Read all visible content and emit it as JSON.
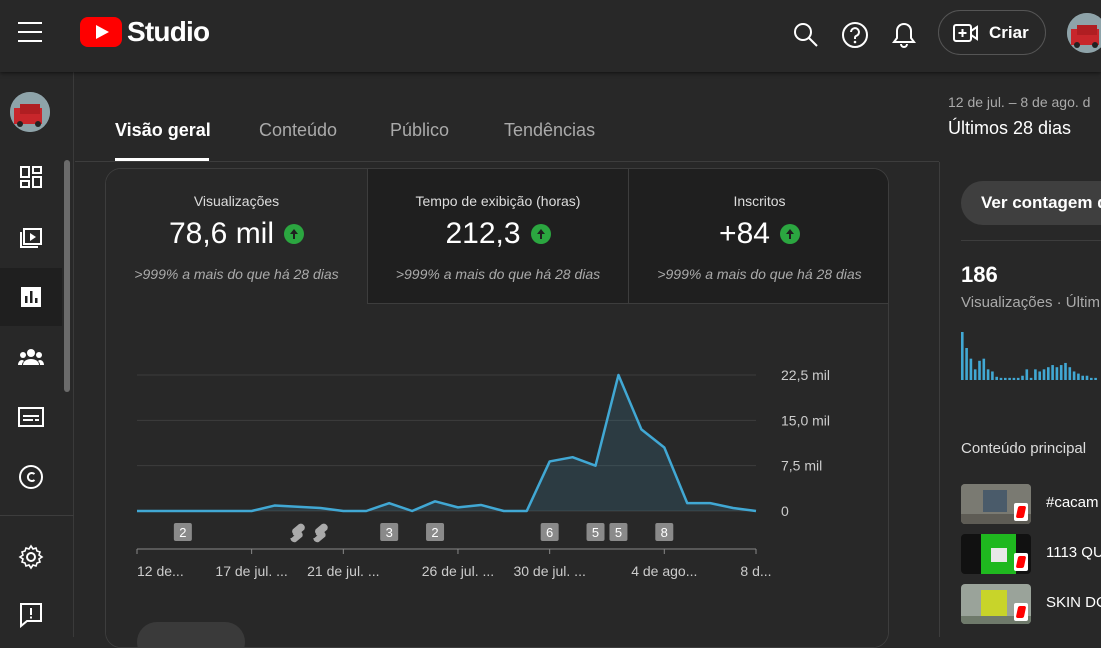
{
  "app": {
    "logo_text": "Studio"
  },
  "topbar": {
    "create_label": "Criar"
  },
  "tabs": [
    {
      "label": "Visão geral"
    },
    {
      "label": "Conteúdo"
    },
    {
      "label": "Público"
    },
    {
      "label": "Tendências"
    }
  ],
  "date_range": {
    "range": "12 de jul. – 8 de ago. d",
    "label": "Últimos 28 dias"
  },
  "metrics": [
    {
      "label": "Visualizações",
      "value": "78,6 mil",
      "comparison": ">999% a mais do que há 28 dias"
    },
    {
      "label": "Tempo de exibição (horas)",
      "value": "212,3",
      "comparison": ">999% a mais do que há 28 dias"
    },
    {
      "label": "Inscritos",
      "value": "+84",
      "comparison": ">999% a mais do que há 28 dias"
    }
  ],
  "chart_data": {
    "type": "area",
    "series": [
      {
        "values": [
          0,
          0,
          0,
          0,
          0,
          0,
          900,
          700,
          500,
          0,
          0,
          1300,
          0,
          1600,
          600,
          1000,
          0,
          0,
          8200,
          8900,
          7500,
          22500,
          13500,
          10500,
          1300,
          1300,
          500,
          0
        ]
      }
    ],
    "ylim": [
      0,
      22500
    ],
    "y_ticks": [
      "22,5 mil",
      "15,0 mil",
      "7,5 mil",
      "0"
    ],
    "x_tick_labels": [
      "12 de...",
      "17 de jul. ...",
      "21 de jul. ...",
      "26 de jul. ...",
      "30 de jul. ...",
      "4 de ago...",
      "8 d..."
    ],
    "x_tick_days": [
      0,
      5,
      9,
      14,
      18,
      23,
      27
    ],
    "markers": [
      {
        "day": 2,
        "label": "2"
      },
      {
        "day": 7,
        "label": "shorts"
      },
      {
        "day": 8,
        "label": "shorts"
      },
      {
        "day": 11,
        "label": "3"
      },
      {
        "day": 13,
        "label": "2"
      },
      {
        "day": 18,
        "label": "6"
      },
      {
        "day": 20,
        "label": "5"
      },
      {
        "day": 21,
        "label": "5"
      },
      {
        "day": 23,
        "label": "8"
      }
    ],
    "line_color": "#41a8d4"
  },
  "realtime": {
    "button_label": "Ver contagem d",
    "count": "186",
    "count_label": "Visualizações · Últim",
    "spark": [
      45,
      30,
      20,
      10,
      18,
      20,
      10,
      8,
      3,
      2,
      2,
      2,
      2,
      2,
      4,
      10,
      2,
      10,
      8,
      10,
      12,
      14,
      12,
      14,
      16,
      12,
      8,
      6,
      4,
      4,
      2,
      2
    ],
    "top_content_title": "Conteúdo principal",
    "top_content": [
      {
        "title": "#cacam"
      },
      {
        "title": "1113 QU"
      },
      {
        "title": "SKIN DC"
      }
    ]
  }
}
